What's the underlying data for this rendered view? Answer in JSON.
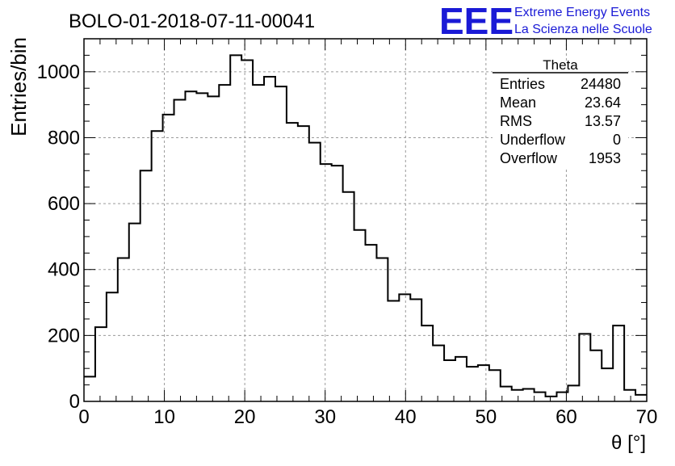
{
  "header": {
    "title": "BOLO-01-2018-07-11-00041",
    "logo_text": "EEE",
    "logo_line1": "Extreme Energy Events",
    "logo_line2": "La Scienza nelle Scuole",
    "logo_color": "#1a1ad6"
  },
  "stats": {
    "title": "Theta",
    "rows": [
      {
        "label": "Entries",
        "value": "24480"
      },
      {
        "label": "Mean",
        "value": "23.64"
      },
      {
        "label": "RMS",
        "value": "13.57"
      },
      {
        "label": "Underflow",
        "value": "0"
      },
      {
        "label": "Overflow",
        "value": "1953"
      }
    ]
  },
  "chart_data": {
    "type": "histogram",
    "xlabel": "θ [°]",
    "ylabel": "Entries/bin",
    "xlim": [
      0,
      70
    ],
    "ylim": [
      0,
      1100
    ],
    "grid": true,
    "bin_width": 1.4,
    "x_ticks": [
      0,
      10,
      20,
      30,
      40,
      50,
      60,
      70
    ],
    "y_ticks": [
      0,
      200,
      400,
      600,
      800,
      1000
    ],
    "values": [
      75,
      225,
      330,
      435,
      540,
      700,
      820,
      870,
      915,
      940,
      935,
      925,
      960,
      1050,
      1035,
      960,
      985,
      955,
      845,
      835,
      785,
      720,
      715,
      635,
      520,
      475,
      435,
      305,
      325,
      310,
      230,
      170,
      125,
      135,
      105,
      110,
      95,
      45,
      35,
      38,
      28,
      15,
      28,
      48,
      205,
      155,
      100,
      230,
      35,
      20
    ]
  }
}
